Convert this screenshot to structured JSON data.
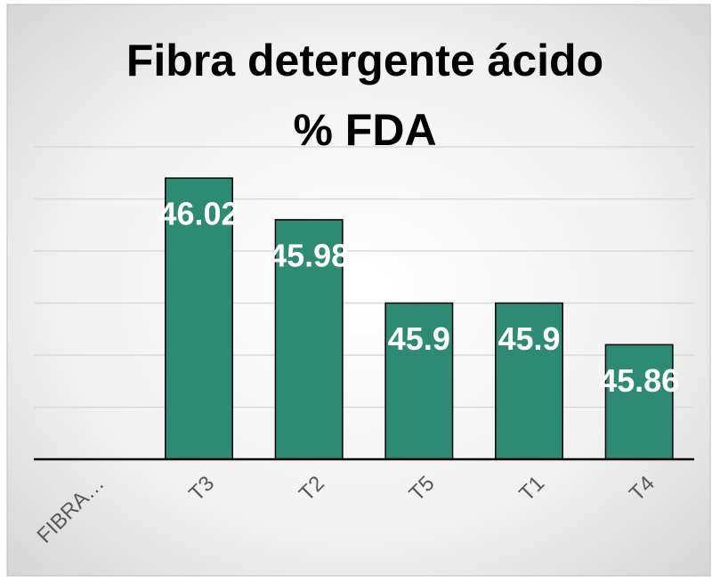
{
  "chart_data": {
    "type": "bar",
    "title": [
      "Fibra detergente ácido",
      "% FDA"
    ],
    "categories": [
      "FIBRA…",
      "T3",
      "T2",
      "T5",
      "T1",
      "T4"
    ],
    "values": [
      null,
      46.02,
      45.98,
      45.9,
      45.9,
      45.86
    ],
    "color": "#2e8b73",
    "ylim": [
      45.75,
      46.05
    ],
    "yticks": [
      45.8,
      45.85,
      45.9,
      45.95,
      46.0,
      46.05
    ],
    "grid": true,
    "show_y_tick_labels": false
  }
}
